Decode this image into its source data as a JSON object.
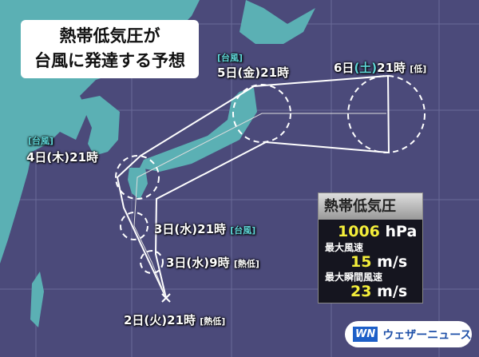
{
  "title": {
    "line1": "熱帯低気圧が",
    "line2": "台風に発達する予想"
  },
  "forecast_points": [
    {
      "date": "2日(火)21時",
      "status": "[熱低]"
    },
    {
      "date": "3日(水)9時",
      "status": "[熱低]"
    },
    {
      "date": "3日(水)21時",
      "status": "[台風]"
    },
    {
      "date": "4日(木)21時",
      "status": "[台風]"
    },
    {
      "date": "5日(金)21時",
      "status": "[台風]"
    },
    {
      "date_prefix": "6日",
      "date_day": "(土)",
      "date_suffix": "21時",
      "status": "[低]"
    }
  ],
  "info": {
    "header": "熱帯低気圧",
    "pressure": "1006",
    "pressure_unit": "hPa",
    "max_wind_label": "最大風速",
    "max_wind": "15",
    "max_wind_unit": "m/s",
    "max_gust_label": "最大瞬間風速",
    "max_gust": "23",
    "gust_unit": "m/s"
  },
  "logo": {
    "mark": "WN",
    "name": "ウェザーニュース"
  },
  "colors": {
    "sea": "#4b4a7a",
    "land": "#5bb0b4",
    "typhoon_tag": "#5fd6d8",
    "value": "#f4ee3a"
  }
}
